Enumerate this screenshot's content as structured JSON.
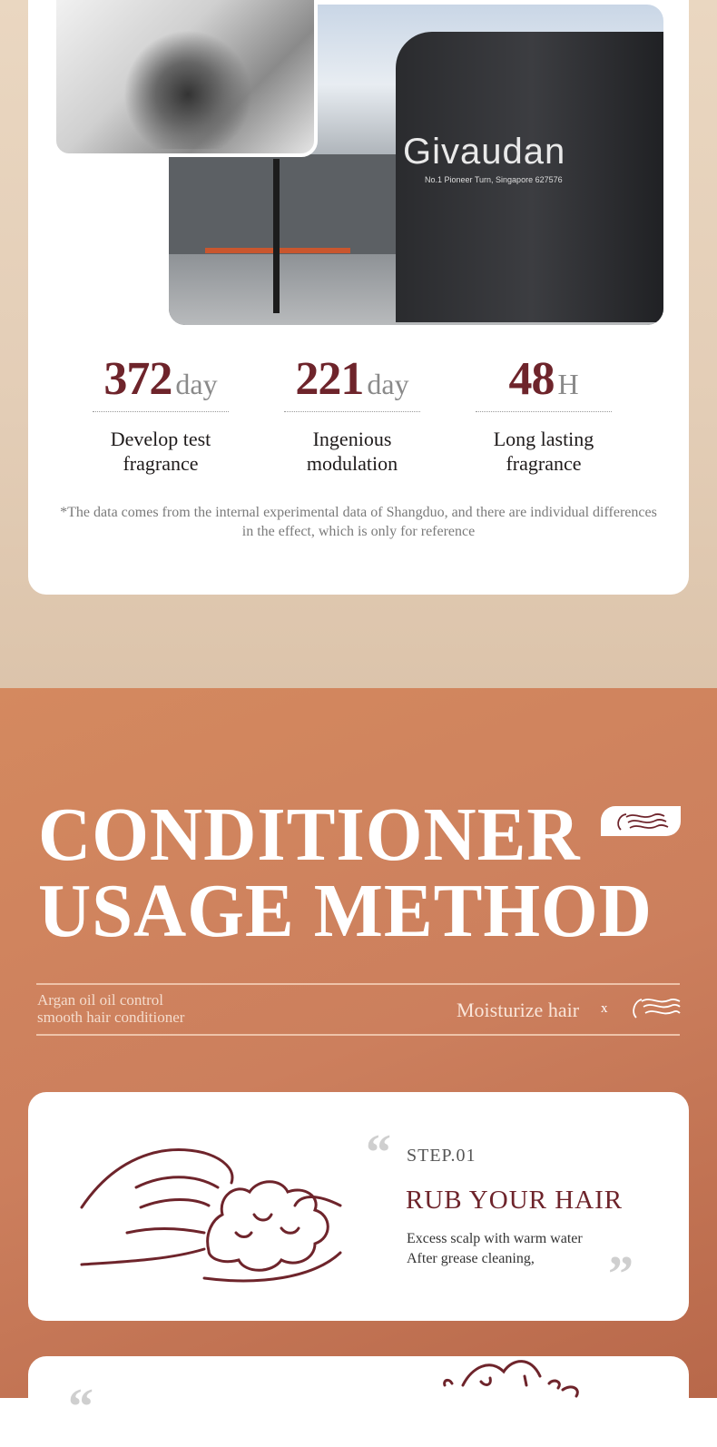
{
  "photo": {
    "sign_text": "Givaudan",
    "sign_subtext": "No.1 Pioneer Turn, Singapore 627576"
  },
  "stats": [
    {
      "value": "372",
      "unit": "day",
      "label_line1": "Develop test",
      "label_line2": "fragrance"
    },
    {
      "value": "221",
      "unit": "day",
      "label_line1": "Ingenious",
      "label_line2": "modulation"
    },
    {
      "value": "48",
      "unit": "H",
      "label_line1": "Long lasting",
      "label_line2": "fragrance"
    }
  ],
  "note": "*The data comes from the internal experimental data of Shangduo, and there are individual differences in the effect, which is only for reference",
  "usage": {
    "title_line1": "CONDITIONER",
    "title_line2": "USAGE METHOD",
    "product_line1": "Argan oil oil control",
    "product_line2": "smooth hair conditioner",
    "benefit": "Moisturize hair",
    "separator": "x"
  },
  "steps": [
    {
      "step": "STEP.01",
      "heading": "RUB YOUR HAIR",
      "desc_line1": "Excess scalp with warm water",
      "desc_line2": "After grease cleaning,"
    }
  ],
  "colors": {
    "accent": "#6e242b",
    "section_bg": "#cc7f5d",
    "top_bg": "#e3cdb6"
  }
}
